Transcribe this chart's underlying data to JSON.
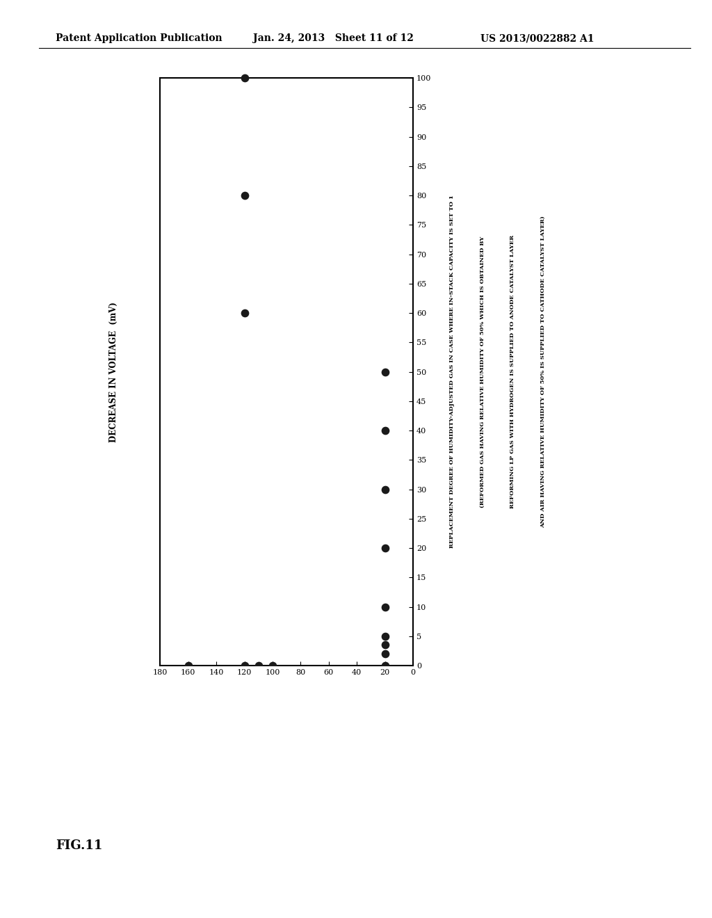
{
  "title": "FIG.11",
  "header_left": "Patent Application Publication",
  "header_center": "Jan. 24, 2013   Sheet 11 of 12",
  "header_right": "US 2013/0022882 A1",
  "xlabel": "DECREASE IN VOLTAGE  (mV)",
  "ylabel_line1": "REPLACEMENT DEGREE OF HUMIDITY-ADJUSTED GAS IN CASE WHERE IN-STACK CAPACITY IS SET TO 1",
  "ylabel_line2": "(REFORMED GAS HAVING RELATIVE HUMIDITY OF 50% WHICH IS OBTAINED BY",
  "ylabel_line3": "REFORMING LP GAS WITH HYDROGEN IS SUPPLIED TO ANODE CATALYST LAYER",
  "ylabel_line4": "AND AIR HAVING RELATIVE HUMIDITY OF 50% IS SUPPLIED TO CATHODE CATALYST LAYER)",
  "xlim_left": 180,
  "xlim_right": 0,
  "ylim_bottom": 0,
  "ylim_top": 100,
  "xticks": [
    0,
    20,
    40,
    60,
    80,
    100,
    120,
    140,
    160,
    180
  ],
  "yticks": [
    0,
    5,
    10,
    15,
    20,
    25,
    30,
    35,
    40,
    45,
    50,
    55,
    60,
    65,
    70,
    75,
    80,
    85,
    90,
    95,
    100
  ],
  "scatter_x": [
    160,
    120,
    110,
    100,
    20,
    20,
    20,
    20,
    20,
    20,
    20,
    20,
    20,
    120,
    120
  ],
  "scatter_y": [
    0,
    0,
    0,
    0,
    0,
    2,
    3.5,
    5,
    10,
    20,
    30,
    40,
    50,
    60,
    80
  ],
  "top_point_x": 120,
  "top_point_y": 100,
  "marker_color": "#1a1a1a",
  "background_color": "#ffffff"
}
